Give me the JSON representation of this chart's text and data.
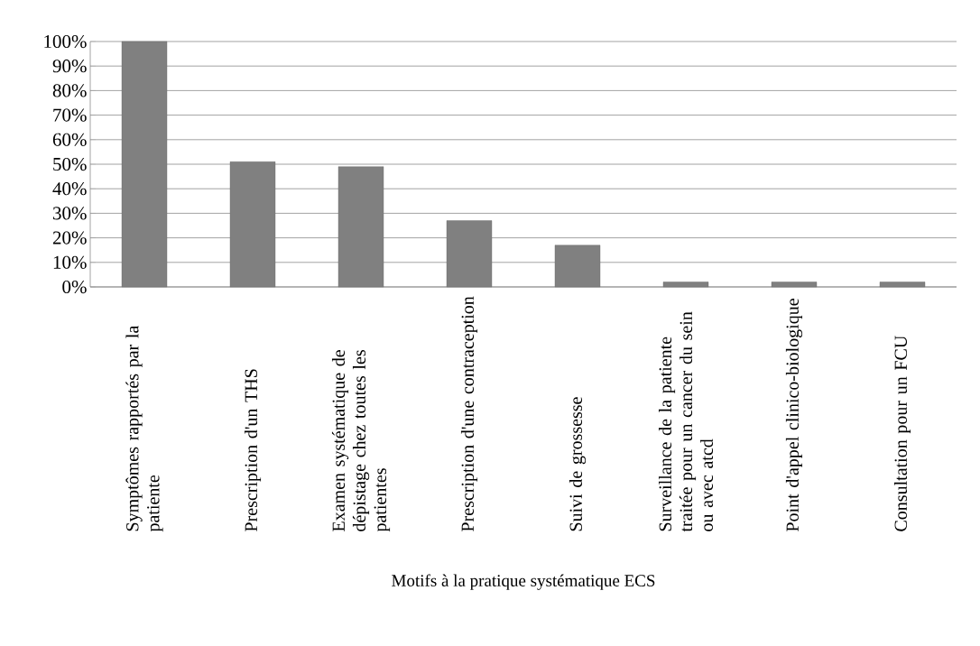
{
  "chart_data": {
    "type": "bar",
    "xlabel": "Motifs à la pratique systématique ECS",
    "categories": [
      "Symptômes rapportés par la patiente",
      "Prescription d'un THS",
      "Examen systématique de dépistage chez toutes les patientes",
      "Prescription d'une contraception",
      "Suivi de grossesse",
      "Surveillance de la patiente traitée pour un cancer du sein ou avec atcd",
      "Point d'appel clinico-biologique",
      "Consultation pour un FCU"
    ],
    "values": [
      100,
      51,
      49,
      27,
      17,
      2,
      2,
      2
    ],
    "color": "#808080",
    "ylim": [
      0,
      100
    ],
    "yticks": [
      {
        "value": 0,
        "label": "0%"
      },
      {
        "value": 10,
        "label": "10%"
      },
      {
        "value": 20,
        "label": "20%"
      },
      {
        "value": 30,
        "label": "30%"
      },
      {
        "value": 40,
        "label": "40%"
      },
      {
        "value": 50,
        "label": "50%"
      },
      {
        "value": 60,
        "label": "60%"
      },
      {
        "value": 70,
        "label": "70%"
      },
      {
        "value": 80,
        "label": "80%"
      },
      {
        "value": 90,
        "label": "90%"
      },
      {
        "value": 100,
        "label": "100%"
      }
    ],
    "grid": "y"
  }
}
